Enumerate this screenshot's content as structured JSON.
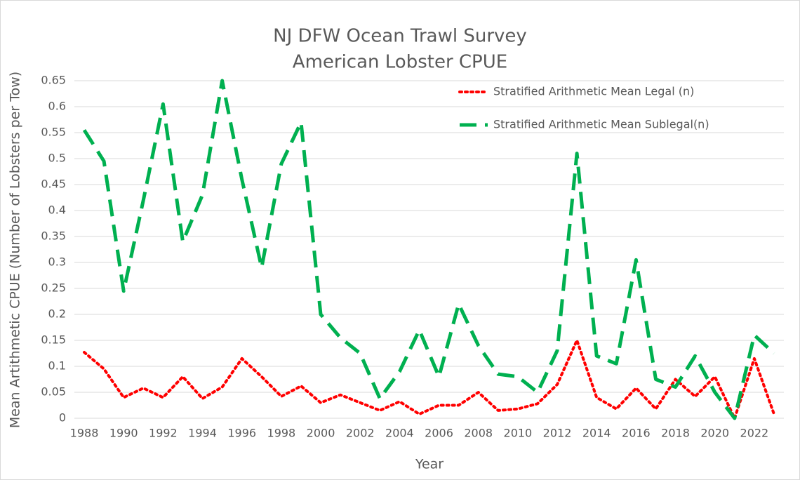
{
  "chart_data": {
    "type": "line",
    "title": "NJ DFW Ocean Trawl Survey",
    "subtitle": "American Lobster CPUE",
    "x_label": "Year",
    "y_label": "Mean Artithmetic CPUE (Number of Lobsters per Tow)",
    "categories": [
      "1988",
      null,
      "1990",
      null,
      "1992",
      null,
      "1994",
      null,
      "1996",
      null,
      "1998",
      null,
      "2000",
      null,
      "2002",
      null,
      "2004",
      null,
      "2006",
      null,
      "2008",
      null,
      "2010",
      null,
      "2012",
      null,
      "2014",
      null,
      "2016",
      null,
      "2018",
      null,
      "2020",
      null,
      "2022",
      null
    ],
    "series": [
      {
        "name": "Stratified Arithmetic Mean Legal (n)",
        "color": "#ff0000",
        "dash": "dotted",
        "values": [
          0.127,
          0.095,
          0.04,
          0.058,
          0.04,
          0.08,
          0.038,
          0.06,
          0.115,
          0.08,
          0.042,
          0.062,
          0.03,
          0.045,
          0.03,
          0.015,
          0.032,
          0.008,
          0.025,
          0.025,
          0.05,
          0.015,
          0.018,
          0.028,
          0.065,
          0.15,
          0.04,
          0.018,
          0.058,
          0.018,
          0.075,
          0.042,
          0.08,
          0.0,
          0.115,
          0.008
        ]
      },
      {
        "name": "Stratified Arithmetic Mean Sublegal(n)",
        "color": "#00b050",
        "dash": "dashed",
        "values": [
          0.555,
          0.495,
          0.245,
          0.42,
          0.605,
          0.34,
          0.43,
          0.65,
          0.46,
          0.29,
          0.49,
          0.57,
          0.2,
          0.155,
          0.125,
          0.038,
          0.09,
          0.17,
          0.08,
          0.22,
          0.14,
          0.085,
          0.08,
          0.05,
          0.13,
          0.51,
          0.12,
          0.105,
          0.305,
          0.075,
          0.06,
          0.12,
          0.05,
          0.0,
          0.16,
          0.125
        ]
      }
    ],
    "ylim": [
      0,
      0.65
    ],
    "yticks": [
      0,
      0.05,
      0.1,
      0.15,
      0.2,
      0.25,
      0.3,
      0.35,
      0.4,
      0.45,
      0.5,
      0.55,
      0.6,
      0.65
    ],
    "grid": true,
    "legend": "top-right"
  }
}
